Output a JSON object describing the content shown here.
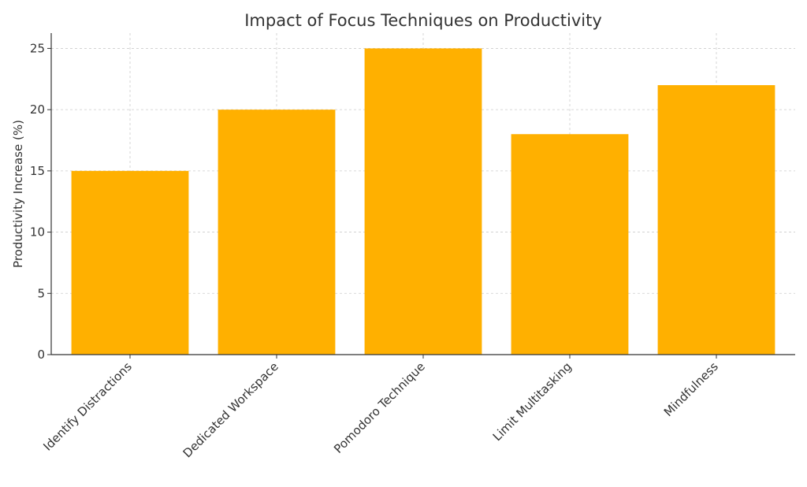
{
  "chart_data": {
    "type": "bar",
    "title": "Impact of Focus Techniques on Productivity",
    "xlabel": "",
    "ylabel": "Productivity Increase (%)",
    "categories": [
      "Identify Distractions",
      "Dedicated Workspace",
      "Pomodoro Technique",
      "Limit Multitasking",
      "Mindfulness"
    ],
    "values": [
      15,
      20,
      25,
      18,
      22
    ],
    "yticks": [
      0,
      5,
      10,
      15,
      20,
      25
    ],
    "ylim": [
      0,
      26.25
    ],
    "grid": true,
    "bar_color": "#FFB000"
  }
}
